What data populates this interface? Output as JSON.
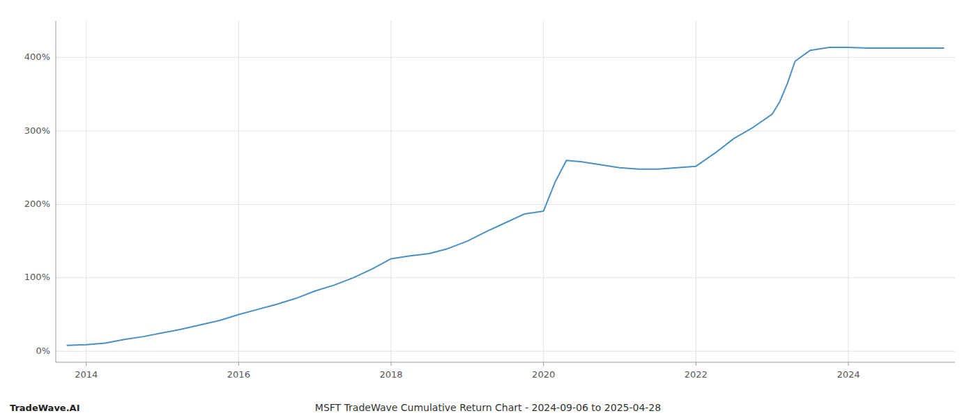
{
  "chart_data": {
    "type": "line",
    "title": "MSFT TradeWave Cumulative Return Chart - 2024-09-06 to 2025-04-28",
    "watermark": "TradeWave.AI",
    "color": "#4a90c4",
    "x": [
      2013.75,
      2014.0,
      2014.25,
      2014.5,
      2014.75,
      2015.0,
      2015.25,
      2015.5,
      2015.75,
      2016.0,
      2016.25,
      2016.5,
      2016.75,
      2017.0,
      2017.25,
      2017.5,
      2017.75,
      2018.0,
      2018.25,
      2018.5,
      2018.75,
      2019.0,
      2019.25,
      2019.5,
      2019.75,
      2020.0,
      2020.15,
      2020.3,
      2020.5,
      2020.75,
      2021.0,
      2021.25,
      2021.5,
      2021.75,
      2022.0,
      2022.25,
      2022.5,
      2022.75,
      2023.0,
      2023.1,
      2023.2,
      2023.3,
      2023.5,
      2023.75,
      2024.0,
      2024.25,
      2024.5,
      2024.75,
      2025.0,
      2025.25
    ],
    "values": [
      8,
      9,
      11,
      16,
      20,
      25,
      30,
      36,
      42,
      50,
      57,
      64,
      72,
      82,
      90,
      100,
      112,
      126,
      130,
      133,
      140,
      150,
      163,
      175,
      187,
      191,
      230,
      260,
      258,
      254,
      250,
      248,
      248,
      250,
      252,
      270,
      290,
      305,
      323,
      340,
      365,
      395,
      410,
      414,
      414,
      413,
      413,
      413,
      413,
      413
    ],
    "xlim": [
      2013.6,
      2025.4
    ],
    "xticks": [
      2014,
      2016,
      2018,
      2020,
      2022,
      2024
    ],
    "ylim": [
      -15,
      450
    ],
    "yticks": [
      {
        "value": 0,
        "label": "0%"
      },
      {
        "value": 100,
        "label": "100%"
      },
      {
        "value": 200,
        "label": "200%"
      },
      {
        "value": 300,
        "label": "300%"
      },
      {
        "value": 400,
        "label": "400%"
      }
    ],
    "grid": true
  }
}
